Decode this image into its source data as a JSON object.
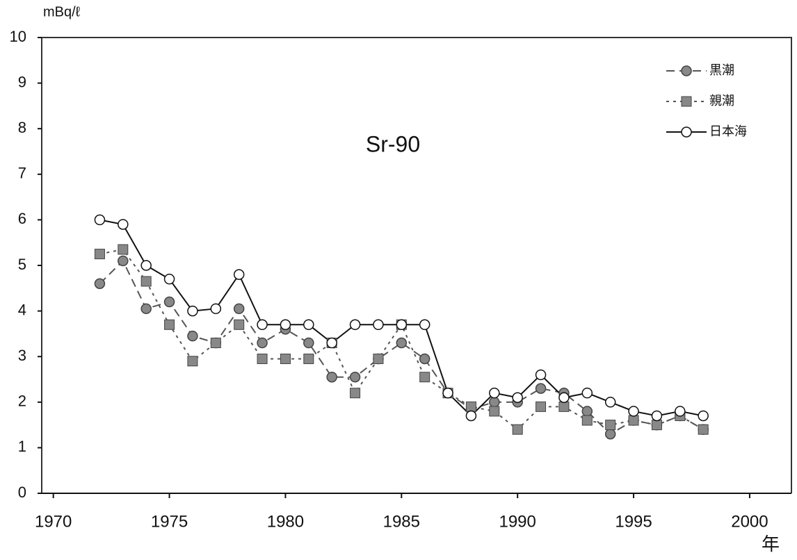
{
  "chart_data": {
    "type": "line",
    "title": "Sr-90",
    "y_label": "mBq/ℓ",
    "x_label": "年",
    "x": [
      1972,
      1973,
      1974,
      1975,
      1976,
      1977,
      1978,
      1979,
      1980,
      1981,
      1982,
      1983,
      1984,
      1985,
      1986,
      1987,
      1988,
      1989,
      1990,
      1991,
      1992,
      1993,
      1994,
      1995,
      1996,
      1997,
      1998
    ],
    "series": [
      {
        "name": "黒潮",
        "color": "#555555",
        "marker": "circle-filled",
        "dash": "dashed",
        "values": [
          4.6,
          5.1,
          4.05,
          4.2,
          3.45,
          3.3,
          4.05,
          3.3,
          3.6,
          3.3,
          2.55,
          2.55,
          2.95,
          3.3,
          2.95,
          2.2,
          1.85,
          2.0,
          2.0,
          2.3,
          2.2,
          1.8,
          1.3,
          1.6,
          1.5,
          1.7,
          1.4
        ]
      },
      {
        "name": "親潮",
        "color": "#555555",
        "marker": "square-filled",
        "dash": "dotted",
        "values": [
          5.25,
          5.35,
          4.65,
          3.7,
          2.9,
          3.3,
          3.7,
          2.95,
          2.95,
          2.95,
          3.3,
          2.2,
          2.95,
          3.7,
          2.55,
          2.2,
          1.9,
          1.8,
          1.4,
          1.9,
          1.9,
          1.6,
          1.5,
          1.6,
          1.5,
          1.7,
          1.4
        ]
      },
      {
        "name": "日本海",
        "color": "#111111",
        "marker": "circle-open",
        "dash": "solid",
        "values": [
          6.0,
          5.9,
          5.0,
          4.7,
          4.0,
          4.05,
          4.8,
          3.7,
          3.7,
          3.7,
          3.3,
          3.7,
          3.7,
          3.7,
          3.7,
          2.2,
          1.7,
          2.2,
          2.1,
          2.6,
          2.1,
          2.2,
          2.0,
          1.8,
          1.7,
          1.8,
          1.7
        ]
      }
    ],
    "xlim": [
      1969.5,
      2001.8
    ],
    "xticks": [
      1970,
      1975,
      1980,
      1985,
      1990,
      1995,
      2000
    ],
    "ylim": [
      0,
      10
    ],
    "yticks": [
      0,
      1,
      2,
      3,
      4,
      5,
      6,
      7,
      8,
      9,
      10
    ],
    "legend": "top-right"
  }
}
